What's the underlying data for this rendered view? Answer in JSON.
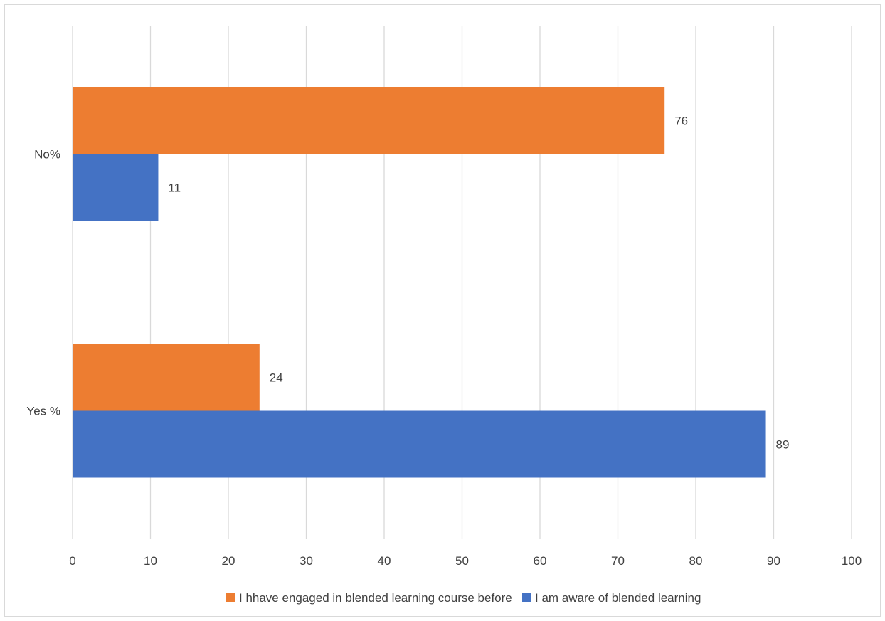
{
  "chart_data": {
    "type": "bar",
    "orientation": "horizontal",
    "categories": [
      "No%",
      "Yes %"
    ],
    "series": [
      {
        "name": "I hhave engaged in blended learning course before",
        "color": "#ED7D31",
        "values": [
          76,
          24
        ]
      },
      {
        "name": "I am aware of blended learning",
        "color": "#4472C4",
        "values": [
          11,
          89
        ]
      }
    ],
    "xlim": [
      0,
      100
    ],
    "xticks": [
      0,
      10,
      20,
      30,
      40,
      50,
      60,
      70,
      80,
      90,
      100
    ],
    "grid": true,
    "data_labels": true,
    "legend_position": "bottom"
  },
  "colors": {
    "gridline": "#d9d9d9",
    "text": "#404040"
  }
}
